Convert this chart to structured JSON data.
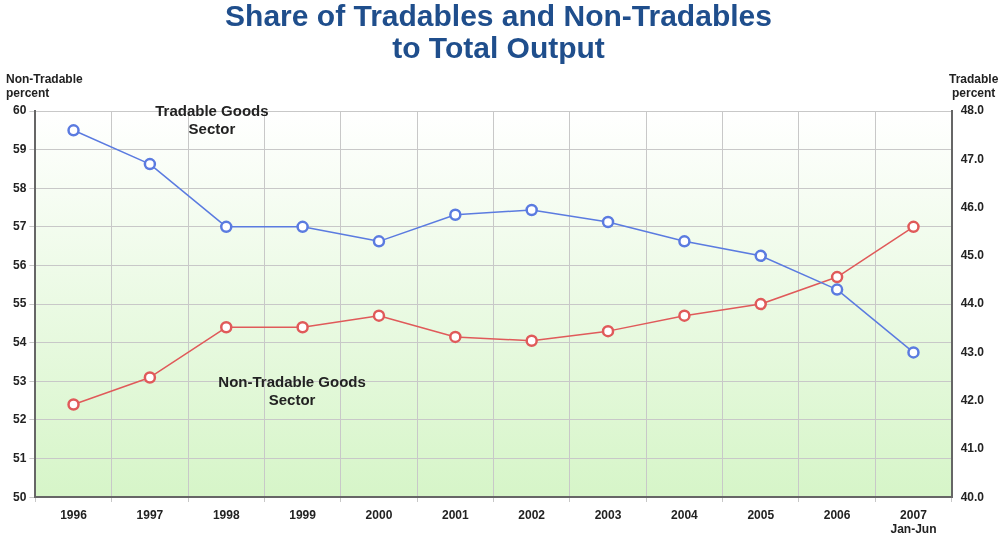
{
  "chart_data": {
    "type": "line",
    "title": "Share of Tradables and Non-Tradables\nto Total Output",
    "ylabel": "Non-Tradable\npercent",
    "y2label": "Tradable\npercent",
    "categories": [
      "1996",
      "1997",
      "1998",
      "1999",
      "2000",
      "2001",
      "2002",
      "2003",
      "2004",
      "2005",
      "2006",
      "2007\nJan-Jun"
    ],
    "series": [
      {
        "name": "Tradable Goods\nSector",
        "color": "#5b7be0",
        "axis": "y2",
        "values": [
          47.6,
          46.9,
          45.6,
          45.6,
          45.3,
          45.85,
          45.95,
          45.7,
          45.3,
          45.0,
          44.3,
          43.0
        ]
      },
      {
        "name": "Non-Tradable Goods\nSector",
        "color": "#e05a5a",
        "axis": "y",
        "values": [
          52.4,
          53.1,
          54.4,
          54.4,
          54.7,
          54.15,
          54.05,
          54.3,
          54.7,
          55.0,
          55.7,
          57.0
        ]
      }
    ],
    "ylim": [
      50,
      60
    ],
    "yticks": [
      50,
      51,
      52,
      53,
      54,
      55,
      56,
      57,
      58,
      59,
      60
    ],
    "y2lim": [
      40,
      48
    ],
    "y2ticks": [
      {
        "value": 40,
        "label": "40.0"
      },
      {
        "value": 41,
        "label": "41.0"
      },
      {
        "value": 42,
        "label": "42.0"
      },
      {
        "value": 43,
        "label": "43.0"
      },
      {
        "value": 44,
        "label": "44.0"
      },
      {
        "value": 45,
        "label": "45.0"
      },
      {
        "value": 46,
        "label": "46.0"
      },
      {
        "value": 47,
        "label": "47.0"
      },
      {
        "value": 48,
        "label": "48.0"
      }
    ],
    "grid": true,
    "legend": false,
    "marker": "circle",
    "line_style": "solid"
  }
}
